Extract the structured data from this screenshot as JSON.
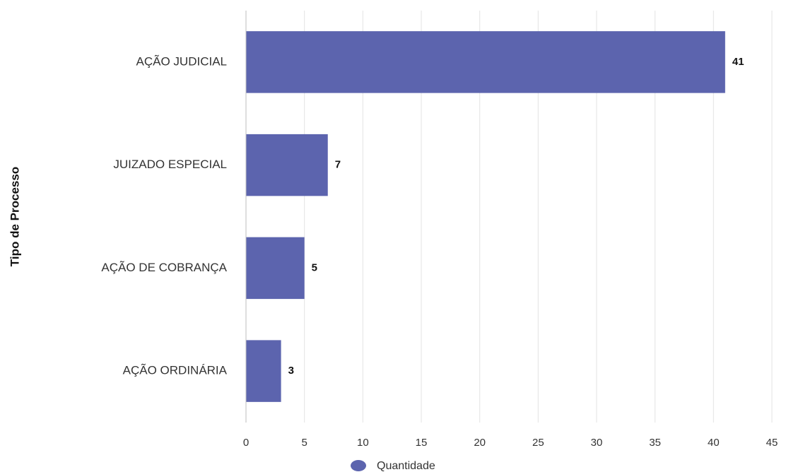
{
  "chart_data": {
    "type": "bar",
    "orientation": "horizontal",
    "categories": [
      "AÇÃO JUDICIAL",
      "JUIZADO ESPECIAL",
      "AÇÃO DE COBRANÇA",
      "AÇÃO ORDINÁRIA"
    ],
    "series": [
      {
        "name": "Quantidade",
        "values": [
          41,
          7,
          5,
          3
        ],
        "color": "#5c64ae"
      }
    ],
    "ylabel": "Tipo de Processo",
    "xlabel": "",
    "xlim": [
      0,
      45
    ],
    "xticks": [
      0,
      5,
      10,
      15,
      20,
      25,
      30,
      35,
      40,
      45
    ],
    "grid": true,
    "data_labels": true,
    "legend_position": "bottom"
  },
  "legend": {
    "label": "Quantidade"
  },
  "colors": {
    "bar": "#5c64ae",
    "grid": "#e3e3e3",
    "axis": "#bdbdbd"
  }
}
